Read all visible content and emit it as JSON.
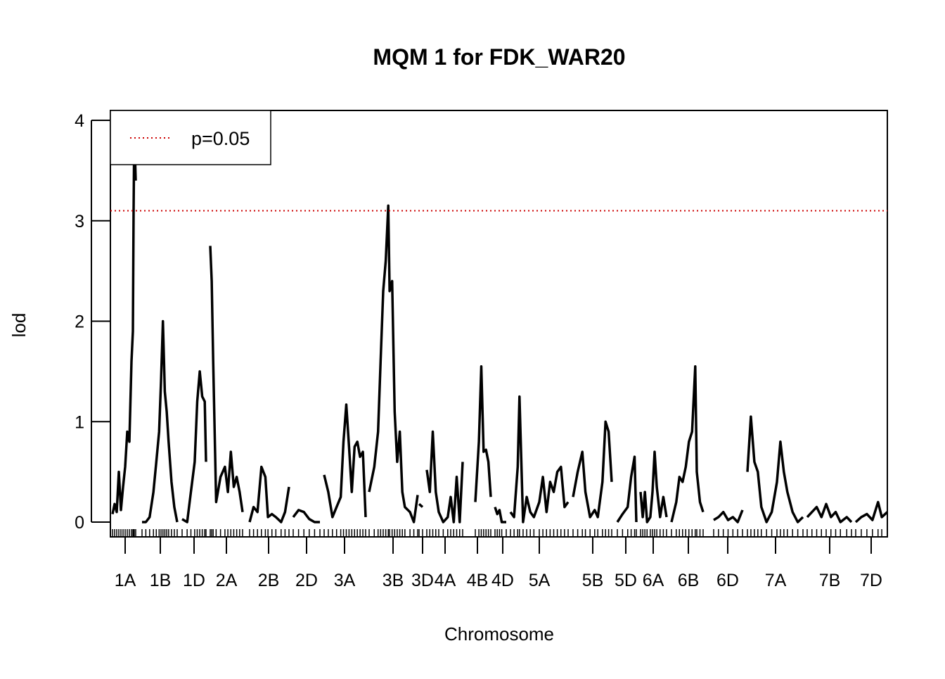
{
  "chart_data": {
    "type": "line",
    "title": "MQM 1 for FDK_WAR20",
    "xlabel": "Chromosome",
    "ylabel": "lod",
    "ylim": [
      0,
      4
    ],
    "yticks": [
      "0",
      "1",
      "2",
      "3",
      "4"
    ],
    "grid": false,
    "legend": {
      "placement": "top-left",
      "entries": [
        {
          "label": "p=0.05",
          "color": "#cc0000",
          "style": "dotted"
        }
      ]
    },
    "threshold": {
      "label": "p=0.05",
      "value": 3.1,
      "color": "#cc0000"
    },
    "line_color": "#000000",
    "chromosomes": [
      {
        "name": "1A",
        "points": [
          [
            0,
            0.08
          ],
          [
            3,
            0.18
          ],
          [
            6,
            0.1
          ],
          [
            9,
            0.5
          ],
          [
            12,
            0.12
          ],
          [
            15,
            0.35
          ],
          [
            18,
            0.55
          ],
          [
            21,
            0.9
          ],
          [
            24,
            0.8
          ],
          [
            27,
            1.6
          ],
          [
            29,
            1.9
          ],
          [
            30,
            3.1
          ],
          [
            31,
            3.9
          ],
          [
            33,
            3.4
          ]
        ]
      },
      {
        "name": "1B",
        "points": [
          [
            0,
            0.0
          ],
          [
            4,
            0.0
          ],
          [
            8,
            0.05
          ],
          [
            12,
            0.3
          ],
          [
            15,
            0.6
          ],
          [
            18,
            0.9
          ],
          [
            20,
            1.4
          ],
          [
            22,
            2.0
          ],
          [
            24,
            1.3
          ],
          [
            26,
            1.1
          ],
          [
            28,
            0.8
          ],
          [
            31,
            0.4
          ],
          [
            34,
            0.15
          ],
          [
            37,
            0.0
          ]
        ]
      },
      {
        "name": "1D",
        "points": [
          [
            0,
            0.03
          ],
          [
            4,
            0.0
          ],
          [
            7,
            0.3
          ],
          [
            10,
            0.6
          ],
          [
            12,
            1.2
          ],
          [
            14,
            1.5
          ],
          [
            16,
            1.25
          ],
          [
            18,
            1.2
          ],
          [
            19,
            0.6
          ]
        ]
      },
      {
        "name": "2A",
        "points": [
          [
            0,
            2.75
          ],
          [
            1,
            2.4
          ],
          [
            2,
            1.6
          ],
          [
            4,
            0.2
          ],
          [
            7,
            0.45
          ],
          [
            10,
            0.55
          ],
          [
            12,
            0.3
          ],
          [
            14,
            0.7
          ],
          [
            16,
            0.35
          ],
          [
            18,
            0.45
          ],
          [
            20,
            0.3
          ],
          [
            22,
            0.1
          ]
        ]
      },
      {
        "name": "2B",
        "points": [
          [
            0,
            0.0
          ],
          [
            3,
            0.15
          ],
          [
            6,
            0.1
          ],
          [
            9,
            0.55
          ],
          [
            12,
            0.45
          ],
          [
            14,
            0.05
          ],
          [
            17,
            0.08
          ],
          [
            20,
            0.05
          ],
          [
            24,
            0.0
          ],
          [
            27,
            0.1
          ],
          [
            30,
            0.35
          ]
        ]
      },
      {
        "name": "2D",
        "points": [
          [
            0,
            0.05
          ],
          [
            4,
            0.12
          ],
          [
            8,
            0.1
          ],
          [
            12,
            0.03
          ],
          [
            16,
            0.0
          ],
          [
            20,
            0.0
          ]
        ]
      },
      {
        "name": "3A",
        "points": [
          [
            0,
            0.47
          ],
          [
            3,
            0.3
          ],
          [
            6,
            0.05
          ],
          [
            9,
            0.15
          ],
          [
            12,
            0.25
          ],
          [
            14,
            0.8
          ],
          [
            16,
            1.17
          ],
          [
            18,
            0.75
          ],
          [
            20,
            0.3
          ],
          [
            22,
            0.75
          ],
          [
            24,
            0.8
          ],
          [
            26,
            0.65
          ],
          [
            28,
            0.7
          ],
          [
            30,
            0.05
          ]
        ]
      },
      {
        "name": "3B",
        "points": [
          [
            0,
            0.3
          ],
          [
            4,
            0.55
          ],
          [
            7,
            0.9
          ],
          [
            9,
            1.6
          ],
          [
            11,
            2.3
          ],
          [
            13,
            2.6
          ],
          [
            15,
            3.15
          ],
          [
            16,
            2.3
          ],
          [
            18,
            2.4
          ],
          [
            20,
            1.1
          ],
          [
            22,
            0.6
          ],
          [
            24,
            0.9
          ],
          [
            26,
            0.3
          ],
          [
            28,
            0.15
          ],
          [
            32,
            0.1
          ],
          [
            35,
            0.0
          ],
          [
            38,
            0.27
          ]
        ]
      },
      {
        "name": "3D",
        "points": [
          [
            0,
            0.18
          ],
          [
            2,
            0.15
          ]
        ]
      },
      {
        "name": "4A",
        "points": [
          [
            0,
            0.52
          ],
          [
            2,
            0.3
          ],
          [
            4,
            0.9
          ],
          [
            6,
            0.3
          ],
          [
            8,
            0.1
          ],
          [
            11,
            0.0
          ],
          [
            14,
            0.05
          ],
          [
            16,
            0.25
          ],
          [
            18,
            0.0
          ],
          [
            20,
            0.45
          ],
          [
            22,
            0.0
          ],
          [
            24,
            0.6
          ]
        ]
      },
      {
        "name": "4B",
        "points": [
          [
            0,
            0.2
          ],
          [
            3,
            0.8
          ],
          [
            5,
            1.55
          ],
          [
            7,
            0.7
          ],
          [
            9,
            0.72
          ],
          [
            11,
            0.6
          ],
          [
            13,
            0.25
          ]
        ]
      },
      {
        "name": "4D",
        "points": [
          [
            0,
            0.15
          ],
          [
            2,
            0.08
          ],
          [
            4,
            0.12
          ],
          [
            6,
            0.0
          ],
          [
            10,
            0.0
          ]
        ]
      },
      {
        "name": "5A",
        "points": [
          [
            0,
            0.1
          ],
          [
            2,
            0.05
          ],
          [
            4,
            0.55
          ],
          [
            5,
            1.25
          ],
          [
            7,
            0.0
          ],
          [
            9,
            0.25
          ],
          [
            11,
            0.1
          ],
          [
            13,
            0.05
          ],
          [
            16,
            0.2
          ],
          [
            18,
            0.45
          ],
          [
            20,
            0.1
          ],
          [
            22,
            0.4
          ],
          [
            24,
            0.3
          ],
          [
            26,
            0.5
          ],
          [
            28,
            0.55
          ],
          [
            30,
            0.15
          ],
          [
            32,
            0.2
          ]
        ]
      },
      {
        "name": "5B",
        "points": [
          [
            0,
            0.25
          ],
          [
            3,
            0.5
          ],
          [
            6,
            0.7
          ],
          [
            8,
            0.3
          ],
          [
            11,
            0.05
          ],
          [
            14,
            0.12
          ],
          [
            16,
            0.05
          ],
          [
            19,
            0.4
          ],
          [
            21,
            1.0
          ],
          [
            23,
            0.9
          ],
          [
            25,
            0.4
          ]
        ]
      },
      {
        "name": "5D",
        "points": [
          [
            0,
            0.0
          ],
          [
            3,
            0.08
          ],
          [
            6,
            0.15
          ],
          [
            8,
            0.45
          ],
          [
            10,
            0.65
          ],
          [
            11,
            0.0
          ]
        ]
      },
      {
        "name": "6A",
        "points": [
          [
            0,
            0.3
          ],
          [
            2,
            0.05
          ],
          [
            4,
            0.3
          ],
          [
            6,
            0.0
          ],
          [
            9,
            0.05
          ],
          [
            11,
            0.3
          ],
          [
            13,
            0.7
          ],
          [
            15,
            0.35
          ],
          [
            18,
            0.05
          ],
          [
            21,
            0.25
          ],
          [
            24,
            0.05
          ]
        ]
      },
      {
        "name": "6B",
        "points": [
          [
            0,
            0.0
          ],
          [
            3,
            0.2
          ],
          [
            5,
            0.45
          ],
          [
            7,
            0.4
          ],
          [
            9,
            0.55
          ],
          [
            11,
            0.8
          ],
          [
            13,
            0.9
          ],
          [
            15,
            1.55
          ],
          [
            16,
            0.5
          ],
          [
            18,
            0.2
          ],
          [
            20,
            0.1
          ]
        ]
      },
      {
        "name": "6D",
        "points": [
          [
            0,
            0.02
          ],
          [
            3,
            0.05
          ],
          [
            6,
            0.1
          ],
          [
            9,
            0.02
          ],
          [
            12,
            0.05
          ],
          [
            15,
            0.0
          ],
          [
            18,
            0.12
          ]
        ]
      },
      {
        "name": "7A",
        "points": [
          [
            0,
            0.5
          ],
          [
            2,
            1.05
          ],
          [
            4,
            0.6
          ],
          [
            6,
            0.5
          ],
          [
            8,
            0.15
          ],
          [
            11,
            0.0
          ],
          [
            14,
            0.1
          ],
          [
            17,
            0.4
          ],
          [
            19,
            0.8
          ],
          [
            21,
            0.5
          ],
          [
            23,
            0.3
          ],
          [
            26,
            0.1
          ],
          [
            29,
            0.0
          ],
          [
            32,
            0.05
          ]
        ]
      },
      {
        "name": "7B",
        "points": [
          [
            0,
            0.05
          ],
          [
            3,
            0.1
          ],
          [
            6,
            0.15
          ],
          [
            9,
            0.05
          ],
          [
            12,
            0.18
          ],
          [
            15,
            0.05
          ],
          [
            18,
            0.1
          ],
          [
            21,
            0.0
          ],
          [
            25,
            0.05
          ],
          [
            28,
            0.0
          ]
        ]
      },
      {
        "name": "7D",
        "points": [
          [
            0,
            0.0
          ],
          [
            3,
            0.05
          ],
          [
            6,
            0.08
          ],
          [
            9,
            0.02
          ],
          [
            12,
            0.2
          ],
          [
            14,
            0.05
          ],
          [
            17,
            0.1
          ]
        ]
      }
    ]
  }
}
